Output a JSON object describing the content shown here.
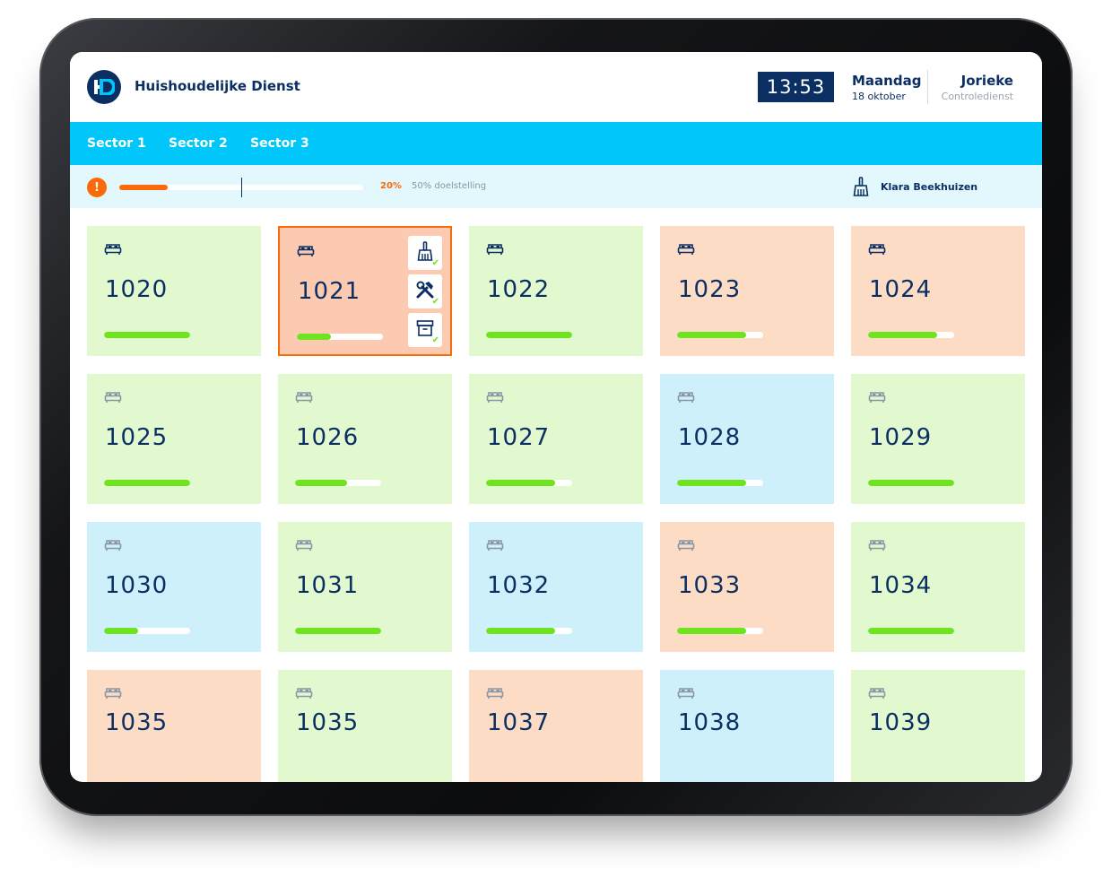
{
  "header": {
    "logo_text": "HD",
    "app_title": "Huishoudelijke Dienst",
    "time": "13:53",
    "day": "Maandag",
    "date": "18 oktober",
    "user_name": "Jorieke",
    "user_role": "Controledienst"
  },
  "nav": {
    "tabs": [
      {
        "label": "Sector 1"
      },
      {
        "label": "Sector 2"
      },
      {
        "label": "Sector 3"
      }
    ]
  },
  "status": {
    "alert_symbol": "!",
    "progress": 0.2,
    "goal": 0.5,
    "percent_label": "20%",
    "goal_label": "50% doelstelling",
    "cleaner_name": "Klara Beekhuizen"
  },
  "colors": {
    "navy": "#0b2f63",
    "accent_blue": "#00c6f9",
    "orange": "#fa6a0a",
    "green": "#6ee41f",
    "card_green": "#e2f9d0",
    "card_orange": "#fddcc6",
    "card_blue": "#cdf0fb"
  },
  "rooms": [
    {
      "number": "1020",
      "status": "green",
      "progress": 1.0
    },
    {
      "number": "1021",
      "status": "selected",
      "progress": 0.4,
      "actions": [
        "broom-icon",
        "tools-icon",
        "archive-icon"
      ]
    },
    {
      "number": "1022",
      "status": "green",
      "progress": 1.0
    },
    {
      "number": "1023",
      "status": "orange",
      "progress": 0.8
    },
    {
      "number": "1024",
      "status": "orange",
      "progress": 0.8
    },
    {
      "number": "1025",
      "status": "green",
      "progress": 1.0
    },
    {
      "number": "1026",
      "status": "green",
      "progress": 0.6
    },
    {
      "number": "1027",
      "status": "green",
      "progress": 0.8
    },
    {
      "number": "1028",
      "status": "blue",
      "progress": 0.8
    },
    {
      "number": "1029",
      "status": "green",
      "progress": 1.0
    },
    {
      "number": "1030",
      "status": "blue",
      "progress": 0.4
    },
    {
      "number": "1031",
      "status": "green",
      "progress": 1.0
    },
    {
      "number": "1032",
      "status": "blue",
      "progress": 0.8
    },
    {
      "number": "1033",
      "status": "orange",
      "progress": 0.8
    },
    {
      "number": "1034",
      "status": "green",
      "progress": 1.0
    },
    {
      "number": "1035",
      "status": "orange",
      "progress": null
    },
    {
      "number": "1035",
      "status": "green",
      "progress": null
    },
    {
      "number": "1037",
      "status": "orange",
      "progress": null
    },
    {
      "number": "1038",
      "status": "blue",
      "progress": null
    },
    {
      "number": "1039",
      "status": "green",
      "progress": null
    }
  ]
}
